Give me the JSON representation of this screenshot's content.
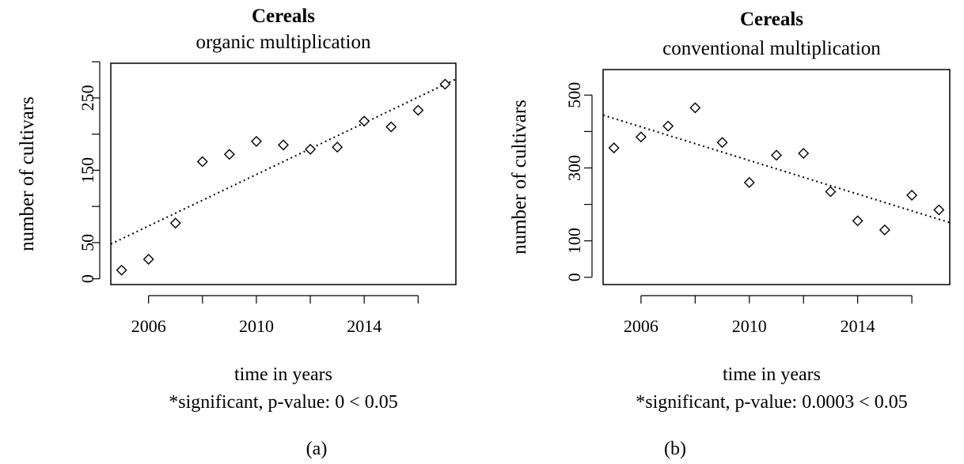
{
  "chart_data": [
    {
      "type": "scatter",
      "title": "Cereals",
      "subtitle": "organic multiplication",
      "xlabel": "time in years",
      "ylabel": "number of cultivars",
      "note": "*significant, p-value:  0  < 0.05",
      "panel_label": "(a)",
      "xlim": [
        2004.6,
        2017.4
      ],
      "ylim": [
        -8,
        298
      ],
      "x_ticks": [
        2006,
        2010,
        2014
      ],
      "y_ticks": [
        0,
        50,
        150,
        250
      ],
      "x_minor_ticks": [
        2006,
        2008,
        2010,
        2012,
        2014,
        2016
      ],
      "y_minor_ticks": [
        0,
        50,
        100,
        150,
        200,
        250,
        300
      ],
      "x": [
        2005,
        2006,
        2007,
        2008,
        2009,
        2010,
        2011,
        2012,
        2013,
        2014,
        2015,
        2016,
        2017
      ],
      "values": [
        12,
        27,
        77,
        162,
        172,
        190,
        185,
        179,
        182,
        218,
        210,
        233,
        269
      ],
      "trend": {
        "x": [
          2004.6,
          2017.4
        ],
        "y": [
          48,
          276
        ]
      },
      "grid": false
    },
    {
      "type": "scatter",
      "title": "Cereals",
      "subtitle": "conventional multiplication",
      "xlabel": "time in years",
      "ylabel": "number of cultivars",
      "note": "*significant, p-value:  0.0003  < 0.05",
      "panel_label": "(b)",
      "xlim": [
        2004.6,
        2017.4
      ],
      "ylim": [
        -20,
        570
      ],
      "x_ticks": [
        2006,
        2010,
        2014
      ],
      "y_ticks": [
        0,
        100,
        300,
        500
      ],
      "x_minor_ticks": [
        2006,
        2008,
        2010,
        2012,
        2014,
        2016
      ],
      "y_minor_ticks": [
        0,
        100,
        200,
        300,
        400,
        500
      ],
      "x": [
        2005,
        2006,
        2007,
        2008,
        2009,
        2010,
        2011,
        2012,
        2013,
        2014,
        2015,
        2016,
        2017
      ],
      "values": [
        355,
        385,
        415,
        465,
        370,
        260,
        335,
        340,
        235,
        155,
        130,
        225,
        185
      ],
      "trend": {
        "x": [
          2004.6,
          2017.4
        ],
        "y": [
          445,
          150
        ]
      },
      "grid": false
    }
  ]
}
